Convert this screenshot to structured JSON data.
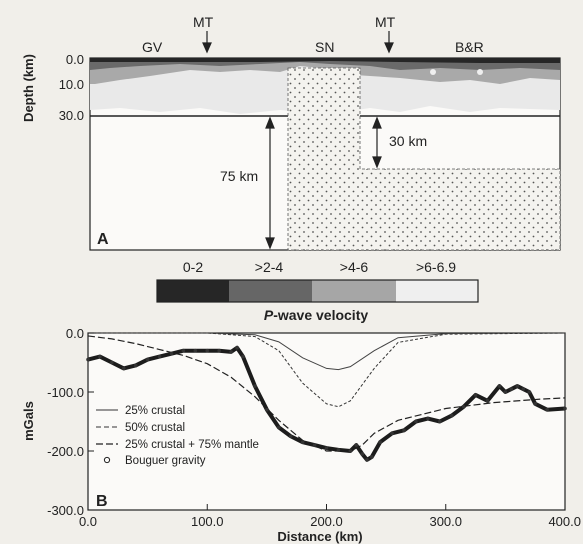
{
  "panel_a": {
    "tag": "A",
    "ylabel": "Depth (km)",
    "yticks": [
      "0.0",
      "10.0",
      "30.0"
    ],
    "region_labels": [
      "GV",
      "SN",
      "B&R"
    ],
    "mt_labels": [
      "MT",
      "MT"
    ],
    "dim_75": "75 km",
    "dim_30": "30 km"
  },
  "velocity_scale": {
    "title": "P-wave velocity",
    "title_italic": "P",
    "title_rest": "-wave velocity",
    "bins": [
      {
        "label": "0-2",
        "color": "#262626"
      },
      {
        "label": ">2-4",
        "color": "#666666"
      },
      {
        "label": ">4-6",
        "color": "#a6a6a6"
      },
      {
        "label": ">6-6.9",
        "color": "#efefef"
      }
    ]
  },
  "chart_data": {
    "type": "line",
    "tag": "B",
    "xlabel": "Distance (km)",
    "ylabel": "mGals",
    "xlim": [
      0,
      400
    ],
    "ylim": [
      -300,
      0
    ],
    "x_ticks": [
      "0.0",
      "100.0",
      "200.0",
      "300.0",
      "400.0"
    ],
    "y_ticks": [
      "0.0",
      "-100.0",
      "-200.0",
      "-300.0"
    ],
    "series": [
      {
        "name": "25% crustal",
        "style": "solid",
        "x": [
          0,
          100,
          140,
          160,
          180,
          200,
          210,
          220,
          240,
          260,
          300,
          400
        ],
        "y": [
          0,
          0,
          -3,
          -15,
          -42,
          -60,
          -62,
          -57,
          -30,
          -8,
          -1,
          0
        ]
      },
      {
        "name": "50% crustal",
        "style": "dashed",
        "x": [
          0,
          100,
          140,
          160,
          180,
          200,
          210,
          220,
          240,
          260,
          300,
          400
        ],
        "y": [
          0,
          0,
          -6,
          -30,
          -85,
          -120,
          -125,
          -115,
          -60,
          -16,
          -2,
          0
        ]
      },
      {
        "name": "25% crustal + 75% mantle",
        "style": "dashed",
        "x": [
          0,
          20,
          40,
          60,
          80,
          100,
          120,
          140,
          160,
          180,
          200,
          220,
          230,
          240,
          260,
          300,
          340,
          380,
          400
        ],
        "y": [
          -5,
          -10,
          -18,
          -28,
          -38,
          -52,
          -75,
          -108,
          -148,
          -182,
          -200,
          -200,
          -190,
          -170,
          -148,
          -128,
          -118,
          -112,
          -110
        ]
      },
      {
        "name": "Bouguer gravity",
        "style": "markers",
        "x": [
          0,
          10,
          20,
          30,
          40,
          50,
          60,
          70,
          80,
          90,
          100,
          110,
          120,
          125,
          130,
          140,
          150,
          160,
          170,
          180,
          190,
          200,
          210,
          220,
          225,
          230,
          234,
          238,
          245,
          255,
          265,
          275,
          285,
          295,
          305,
          315,
          325,
          335,
          345,
          350,
          355,
          360,
          365,
          370,
          375,
          385,
          400
        ],
        "y": [
          -45,
          -40,
          -50,
          -60,
          -55,
          -45,
          -40,
          -35,
          -30,
          -30,
          -30,
          -30,
          -32,
          -25,
          -40,
          -90,
          -130,
          -160,
          -175,
          -185,
          -190,
          -195,
          -198,
          -200,
          -190,
          -205,
          -215,
          -210,
          -185,
          -170,
          -165,
          -150,
          -145,
          -150,
          -140,
          -125,
          -105,
          -115,
          -90,
          -100,
          -95,
          -90,
          -95,
          -100,
          -120,
          -130,
          -128
        ]
      }
    ]
  }
}
